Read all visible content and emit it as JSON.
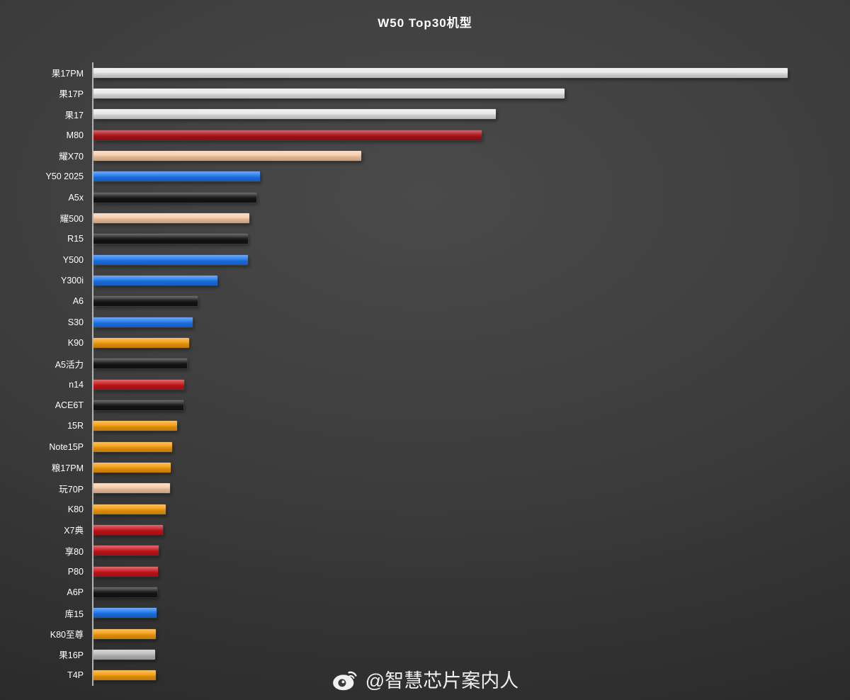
{
  "title": "W50 Top30机型",
  "watermark": {
    "handle": "@智慧芯片案内人",
    "icon": "weibo-icon"
  },
  "colors": {
    "background_light": "#4a4a4a",
    "background_dark": "#242424",
    "axis": "#b5b5b5",
    "text": "#ffffff",
    "silver": "#e8e8e8",
    "dark_red": "#b01218",
    "peach": "#f8cba6",
    "blue": "#1b76ee",
    "black": "#151515",
    "orange": "#f59b0c",
    "red": "#c8151a",
    "gray": "#bdbdbd"
  },
  "chart_data": {
    "type": "bar",
    "orientation": "horizontal",
    "title": "W50 Top30机型",
    "categories": [
      "果17PM",
      "果17P",
      "果17",
      "M80",
      "耀X70",
      "Y50 2025",
      "A5x",
      "耀500",
      "R15",
      "Y500",
      "Y300i",
      "A6",
      "S30",
      "K90",
      "A5活力",
      "n14",
      "ACE6T",
      "15R",
      "Note15P",
      "粮17PM",
      "玩70P",
      "K80",
      "X7典",
      "享80",
      "P80",
      "A6P",
      "库15",
      "K80至尊",
      "果16P",
      "T4P"
    ],
    "values": [
      100,
      67.9,
      58.0,
      55.9,
      38.6,
      24.0,
      23.5,
      22.4,
      22.2,
      22.2,
      17.9,
      15.0,
      14.3,
      13.8,
      13.5,
      13.1,
      13.0,
      12.0,
      11.3,
      11.1,
      11.0,
      10.4,
      10.0,
      9.4,
      9.3,
      9.2,
      9.1,
      9.0,
      8.9,
      9.0
    ],
    "bar_colors": [
      "#e8e8e8",
      "#e8e8e8",
      "#e8e8e8",
      "#b01218",
      "#f8cba6",
      "#1b76ee",
      "#151515",
      "#f8cba6",
      "#151515",
      "#1b76ee",
      "#1b76ee",
      "#151515",
      "#1b76ee",
      "#f59b0c",
      "#151515",
      "#c8151a",
      "#151515",
      "#f59b0c",
      "#f59b0c",
      "#f59b0c",
      "#f8cba6",
      "#f59b0c",
      "#c8151a",
      "#c8151a",
      "#c8151a",
      "#151515",
      "#1b76ee",
      "#f59b0c",
      "#bdbdbd",
      "#f59b0c"
    ],
    "xlim": [
      0,
      100
    ],
    "grid": false,
    "legend": false,
    "value_labels_shown": false
  }
}
